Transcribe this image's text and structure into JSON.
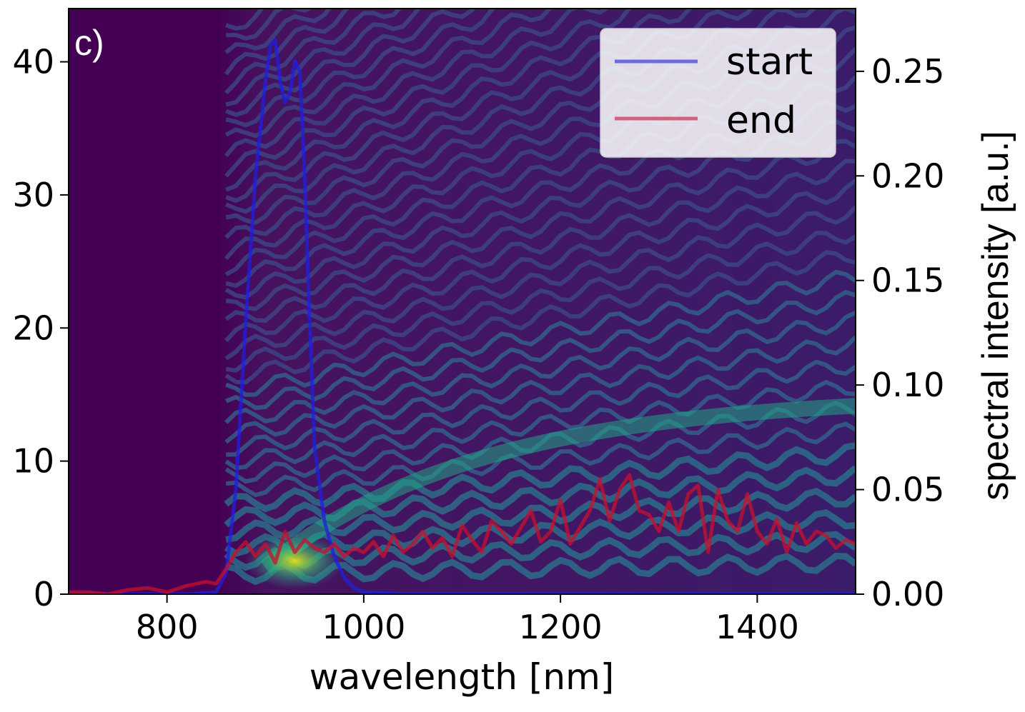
{
  "chart_data": {
    "type": "line",
    "panel_label": "c)",
    "xlabel": "wavelength [nm]",
    "ylabel_left": "",
    "ylabel_right": "spectral intensity [a.u.]",
    "xlim": [
      700,
      1500
    ],
    "ylim_left": [
      0,
      44
    ],
    "ylim_right": [
      0,
      0.28
    ],
    "x_ticks": [
      800,
      1000,
      1200,
      1400
    ],
    "x_tick_labels": [
      "800",
      "1000",
      "1200",
      "1400"
    ],
    "y_left_ticks": [
      0,
      10,
      20,
      30,
      40
    ],
    "y_left_tick_labels": [
      "0",
      "10",
      "20",
      "30",
      "40"
    ],
    "y_right_ticks": [
      0,
      0.05,
      0.1,
      0.15,
      0.2,
      0.25
    ],
    "y_right_tick_labels": [
      "0.00",
      "0.05",
      "0.10",
      "0.15",
      "0.20",
      "0.25"
    ],
    "background": {
      "type": "heatmap",
      "colormap": "viridis",
      "description_values": "spectral evolution along propagation distance (left axis)"
    },
    "legend": {
      "position": "top-right",
      "entries": [
        "start",
        "end"
      ]
    },
    "series": [
      {
        "name": "start",
        "color": "#1f1fe0",
        "x": [
          700,
          820,
          850,
          860,
          870,
          880,
          890,
          900,
          905,
          910,
          915,
          920,
          925,
          930,
          935,
          940,
          945,
          950,
          960,
          970,
          980,
          990,
          1000,
          1020,
          1050,
          1100,
          1200,
          1300,
          1400,
          1500
        ],
        "y": [
          0,
          0,
          0.001,
          0.01,
          0.05,
          0.13,
          0.2,
          0.245,
          0.262,
          0.265,
          0.245,
          0.235,
          0.24,
          0.255,
          0.25,
          0.2,
          0.13,
          0.07,
          0.035,
          0.018,
          0.008,
          0.003,
          0.001,
          0.0005,
          0,
          0,
          0,
          0,
          0,
          0
        ]
      },
      {
        "name": "end",
        "color": "#c8102e",
        "x": [
          700,
          720,
          740,
          760,
          780,
          800,
          820,
          840,
          850,
          860,
          870,
          880,
          890,
          900,
          910,
          920,
          930,
          940,
          950,
          960,
          970,
          980,
          990,
          1000,
          1010,
          1020,
          1030,
          1040,
          1050,
          1060,
          1070,
          1080,
          1090,
          1100,
          1110,
          1120,
          1130,
          1140,
          1150,
          1160,
          1170,
          1180,
          1190,
          1200,
          1210,
          1220,
          1230,
          1240,
          1250,
          1260,
          1270,
          1280,
          1290,
          1300,
          1310,
          1320,
          1330,
          1340,
          1350,
          1360,
          1370,
          1380,
          1390,
          1400,
          1410,
          1420,
          1430,
          1440,
          1450,
          1460,
          1470,
          1480,
          1490,
          1500
        ],
        "y": [
          0.001,
          0.001,
          0.0,
          0.002,
          0.003,
          0.001,
          0.004,
          0.006,
          0.005,
          0.012,
          0.02,
          0.025,
          0.018,
          0.024,
          0.015,
          0.03,
          0.02,
          0.026,
          0.022,
          0.02,
          0.024,
          0.018,
          0.022,
          0.02,
          0.025,
          0.018,
          0.028,
          0.02,
          0.024,
          0.03,
          0.022,
          0.027,
          0.018,
          0.033,
          0.026,
          0.02,
          0.035,
          0.03,
          0.024,
          0.032,
          0.04,
          0.025,
          0.03,
          0.045,
          0.024,
          0.032,
          0.04,
          0.055,
          0.035,
          0.05,
          0.057,
          0.04,
          0.038,
          0.03,
          0.044,
          0.03,
          0.048,
          0.052,
          0.02,
          0.05,
          0.035,
          0.03,
          0.048,
          0.03,
          0.024,
          0.036,
          0.02,
          0.034,
          0.024,
          0.03,
          0.028,
          0.022,
          0.026,
          0.024
        ]
      }
    ]
  }
}
